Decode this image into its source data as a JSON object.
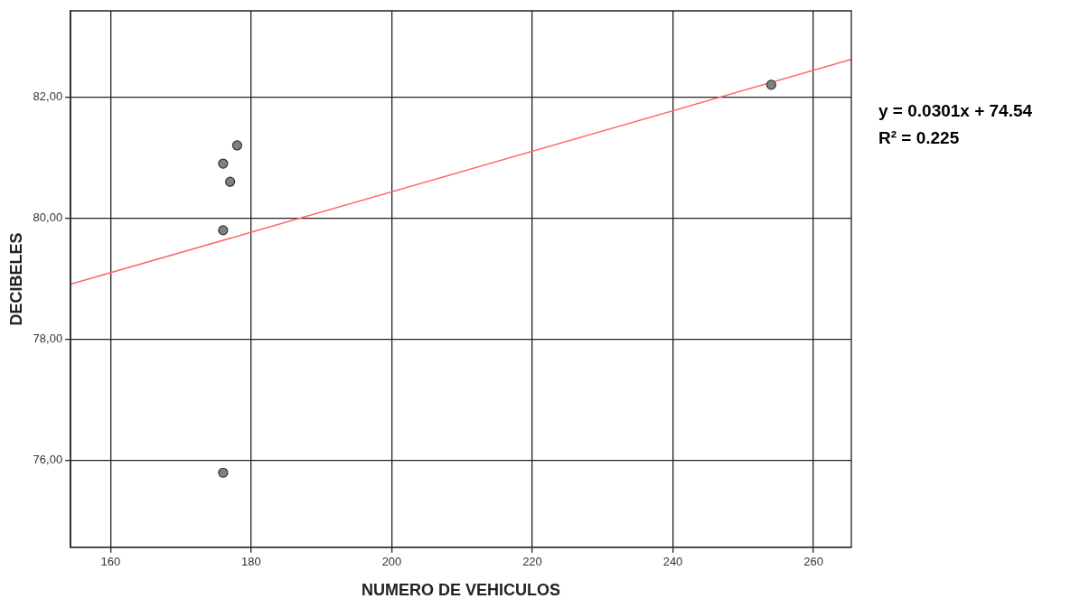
{
  "chart_data": {
    "type": "scatter",
    "xlabel": "NUMERO DE VEHICULOS",
    "ylabel": "DECIBELES",
    "xlim": [
      154.3,
      265.4
    ],
    "ylim": [
      74.57,
      83.42
    ],
    "xticks": [
      160,
      180,
      200,
      220,
      240,
      260
    ],
    "yticks": [
      {
        "value": 76,
        "label": "76,00"
      },
      {
        "value": 78,
        "label": "78,00"
      },
      {
        "value": 80,
        "label": "80,00"
      },
      {
        "value": 82,
        "label": "82,00"
      }
    ],
    "grid": true,
    "legend": false,
    "marker": "circle",
    "series": [
      {
        "type": "scatter",
        "color": "#808080",
        "x": [
          176,
          178,
          177,
          176,
          176,
          254
        ],
        "values": [
          80.9,
          81.2,
          80.6,
          79.8,
          75.8,
          82.2
        ]
      },
      {
        "type": "line",
        "color": "#ff6666",
        "marker": "none",
        "x": [
          154.3,
          265.4
        ],
        "values": [
          78.91,
          82.62
        ]
      }
    ],
    "annotations": [
      "y = 0.0301x + 74.54",
      "R² = 0.225"
    ]
  }
}
